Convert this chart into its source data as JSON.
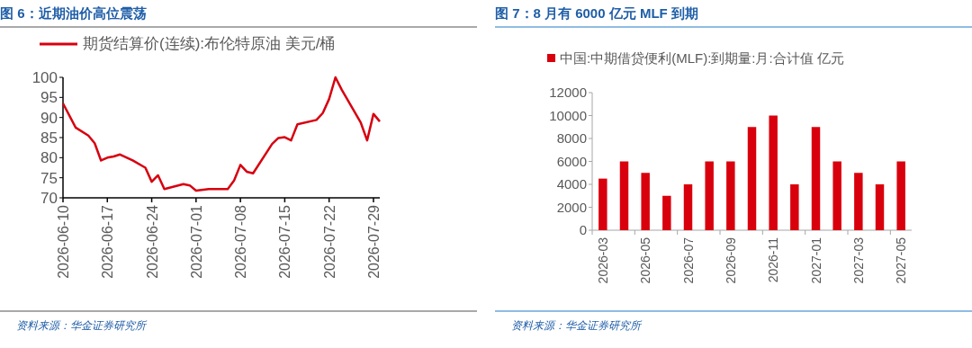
{
  "chart_data": [
    {
      "type": "line",
      "title": "图 6：近期油价高位震荡",
      "legend": "top",
      "grid": false,
      "xlim": [
        "2026-06-10",
        "2026-07-30"
      ],
      "xticks": [
        "2026-06-10",
        "2026-06-17",
        "2026-06-24",
        "2026-07-01",
        "2026-07-08",
        "2026-07-15",
        "2026-07-22",
        "2026-07-29"
      ],
      "ylim": [
        70,
        100
      ],
      "yticks": [
        70,
        75,
        80,
        85,
        90,
        95,
        100
      ],
      "series": [
        {
          "name": "期货结算价(连续):布伦特原油 美元/桶",
          "color": "#d7000f",
          "x": [
            "2026-06-10",
            "2026-06-12",
            "2026-06-14",
            "2026-06-15",
            "2026-06-16",
            "2026-06-17",
            "2026-06-18",
            "2026-06-19",
            "2026-06-21",
            "2026-06-23",
            "2026-06-24",
            "2026-06-25",
            "2026-06-26",
            "2026-06-29",
            "2026-06-30",
            "2026-07-01",
            "2026-07-03",
            "2026-07-06",
            "2026-07-07",
            "2026-07-08",
            "2026-07-09",
            "2026-07-10",
            "2026-07-13",
            "2026-07-14",
            "2026-07-15",
            "2026-07-16",
            "2026-07-17",
            "2026-07-20",
            "2026-07-21",
            "2026-07-22",
            "2026-07-23",
            "2026-07-24",
            "2026-07-27",
            "2026-07-28",
            "2026-07-29",
            "2026-07-30"
          ],
          "values": [
            93.5,
            87.5,
            85.5,
            83.6,
            79.3,
            80.0,
            80.3,
            80.8,
            79.3,
            77.5,
            74.0,
            75.6,
            72.2,
            73.4,
            73.1,
            71.8,
            72.2,
            72.2,
            74.3,
            78.2,
            76.5,
            76.1,
            83.4,
            84.9,
            85.1,
            84.3,
            88.3,
            89.4,
            91.1,
            94.6,
            100,
            96.9,
            88.7,
            84.3,
            90.9,
            89.0
          ]
        }
      ],
      "annotations": [
        "资料来源：华金证券研究所"
      ]
    },
    {
      "type": "bar",
      "title": "图 7：8 月有 6000 亿元 MLF 到期",
      "legend": "top",
      "grid": false,
      "categories": [
        "2026-03",
        null,
        "2026-05",
        null,
        "2026-07",
        null,
        "2026-09",
        null,
        "2026-11",
        null,
        "2027-01",
        null,
        "2027-03",
        null,
        "2027-05"
      ],
      "ylim": [
        0,
        12000
      ],
      "yticks": [
        0,
        2000,
        4000,
        6000,
        8000,
        10000,
        12000
      ],
      "series": [
        {
          "name": "中国:中期借贷便利(MLF):到期量:月:合计值 亿元",
          "color": "#d9000d",
          "values": [
            4500,
            6000,
            5000,
            3000,
            4000,
            6000,
            6000,
            9000,
            10000,
            4000,
            9000,
            6000,
            5000,
            4000,
            6000
          ]
        }
      ],
      "annotations": [
        "资料来源：华金证券研究所"
      ]
    }
  ]
}
